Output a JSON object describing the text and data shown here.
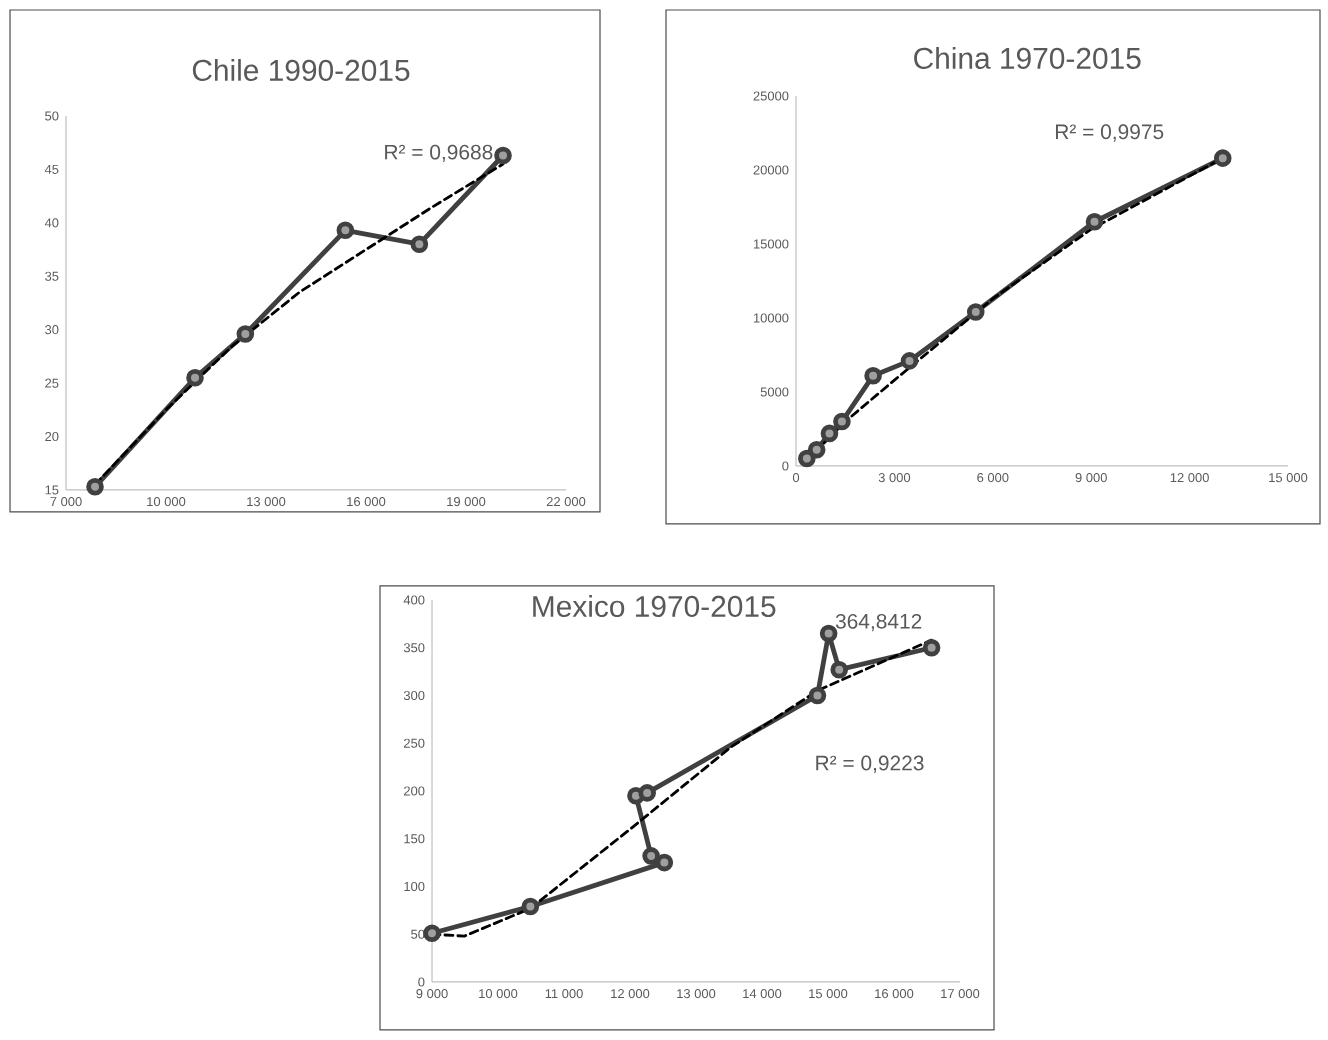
{
  "chart_data": [
    {
      "type": "line",
      "title": "Chile 1990-2015",
      "marker": "circle",
      "line_style": "solid",
      "xlim": [
        7000,
        22000
      ],
      "ylim": [
        15,
        50
      ],
      "xticks": [
        {
          "value": 7000,
          "label": "7 000"
        },
        {
          "value": 10000,
          "label": "10 000"
        },
        {
          "value": 13000,
          "label": "13 000"
        },
        {
          "value": 16000,
          "label": "16 000"
        },
        {
          "value": 19000,
          "label": "19 000"
        },
        {
          "value": 22000,
          "label": "22 000"
        }
      ],
      "yticks": [
        15,
        20,
        25,
        30,
        35,
        40,
        45,
        50
      ],
      "series": [
        {
          "color": "#404040",
          "x": [
            7870,
            10870,
            12380,
            15380,
            17600,
            20110
          ],
          "values": [
            15.3,
            25.5,
            29.6,
            39.3,
            38.0,
            46.3
          ]
        },
        {
          "type": "line",
          "color": "#000000",
          "line_style": "dashed",
          "marker": "none",
          "x": [
            7870,
            10000,
            12000,
            14000,
            16000,
            18000,
            20110
          ],
          "values": [
            15.5,
            22.5,
            28.5,
            33.5,
            37.5,
            41.5,
            45.5
          ]
        }
      ],
      "annotations": [
        "R² = 0,9688"
      ]
    },
    {
      "type": "line",
      "title": "China 1970-2015",
      "marker": "circle",
      "line_style": "solid",
      "xlim": [
        0,
        15000
      ],
      "ylim": [
        0,
        25000
      ],
      "xticks": [
        0,
        {
          "value": 3000,
          "label": "3 000"
        },
        {
          "value": 6000,
          "label": "6 000"
        },
        {
          "value": 9000,
          "label": "9 000"
        },
        {
          "value": 12000,
          "label": "12 000"
        },
        {
          "value": 15000,
          "label": "15 000"
        }
      ],
      "yticks": [
        0,
        5000,
        10000,
        15000,
        20000,
        25000
      ],
      "series": [
        {
          "color": "#404040",
          "x": [
            330,
            630,
            1020,
            1400,
            2350,
            3460,
            5480,
            9100,
            13010
          ],
          "values": [
            500,
            1100,
            2200,
            3000,
            6100,
            7100,
            10400,
            16500,
            20800
          ]
        },
        {
          "type": "line",
          "color": "#000000",
          "line_style": "dashed",
          "marker": "none",
          "x": [
            300,
            1500,
            3000,
            6000,
            9000,
            13010
          ],
          "values": [
            300,
            3000,
            5800,
            11300,
            16000,
            20800
          ]
        }
      ],
      "annotations": [
        "R² = 0,9975"
      ]
    },
    {
      "type": "line",
      "title": "Mexico 1970-2015",
      "marker": "circle",
      "line_style": "solid",
      "xlim": [
        9000,
        17000
      ],
      "ylim": [
        0,
        400
      ],
      "xticks": [
        {
          "value": 9000,
          "label": "9 000"
        },
        {
          "value": 10000,
          "label": "10 000"
        },
        {
          "value": 11000,
          "label": "11 000"
        },
        {
          "value": 12000,
          "label": "12 000"
        },
        {
          "value": 13000,
          "label": "13 000"
        },
        {
          "value": 14000,
          "label": "14 000"
        },
        {
          "value": 15000,
          "label": "15 000"
        },
        {
          "value": 16000,
          "label": "16 000"
        },
        {
          "value": 17000,
          "label": "17 000"
        }
      ],
      "yticks": [
        0,
        50,
        100,
        150,
        200,
        250,
        300,
        350,
        400
      ],
      "series": [
        {
          "color": "#404040",
          "x": [
            9000,
            10490,
            12520,
            12320,
            12090,
            12260,
            14840,
            15010,
            15170,
            16570
          ],
          "values": [
            51,
            79,
            125,
            132,
            195,
            198,
            300,
            364.8412,
            327,
            350
          ]
        },
        {
          "type": "line",
          "color": "#000000",
          "line_style": "dashed",
          "marker": "none",
          "x": [
            9000,
            9490,
            10490,
            12020,
            13530,
            14840,
            16570
          ],
          "values": [
            50,
            48,
            77,
            161,
            246,
            305,
            358
          ]
        }
      ],
      "annotations": [
        {
          "text": "364,8412",
          "x": 15010,
          "y": 364.8412
        },
        "R² = 0,9223"
      ]
    }
  ]
}
